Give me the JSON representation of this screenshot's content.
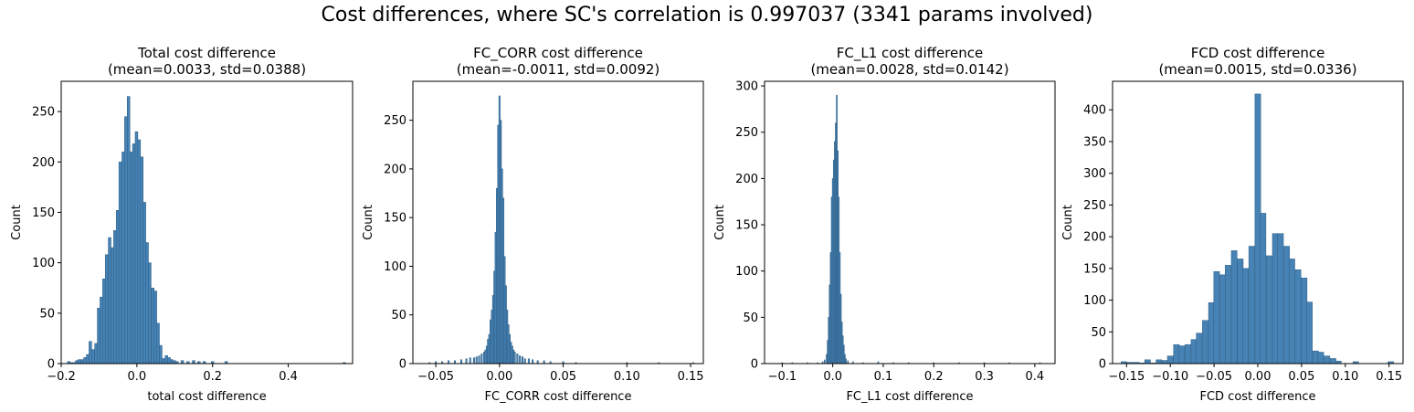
{
  "figure": {
    "suptitle": "Cost differences, where SC's correlation is 0.997037 (3341 params involved)"
  },
  "colors": {
    "bar_fill": "#4682b4",
    "bar_edge": "#2f5f86",
    "axis": "#000000"
  },
  "chart_data": [
    {
      "type": "bar",
      "title_line1": "Total cost difference",
      "title_line2": "(mean=0.0033, std=0.0388)",
      "xlabel": "total cost difference",
      "ylabel": "Count",
      "xlim": [
        -0.2,
        0.57
      ],
      "ylim": [
        0,
        280
      ],
      "xticks": [
        -0.2,
        0.0,
        0.2,
        0.4
      ],
      "xtick_labels": [
        "−0.2",
        "0.0",
        "0.2",
        "0.4"
      ],
      "yticks": [
        0,
        50,
        100,
        150,
        200,
        250
      ],
      "bin_width": 0.0072,
      "series": [
        {
          "x": [
            -0.18,
            -0.173,
            -0.166,
            -0.159,
            -0.152,
            -0.144,
            -0.137,
            -0.13,
            -0.123,
            -0.116,
            -0.108,
            -0.101,
            -0.094,
            -0.087,
            -0.08,
            -0.072,
            -0.065,
            -0.058,
            -0.051,
            -0.044,
            -0.036,
            -0.029,
            -0.022,
            -0.015,
            -0.008,
            -0.001,
            0.006,
            0.013,
            0.02,
            0.027,
            0.034,
            0.042,
            0.049,
            0.056,
            0.063,
            0.07,
            0.078,
            0.085,
            0.092,
            0.099,
            0.106,
            0.12,
            0.135,
            0.15,
            0.164,
            0.178,
            0.2,
            0.236,
            0.548
          ],
          "values": [
            2,
            1,
            1,
            3,
            4,
            4,
            6,
            9,
            22,
            14,
            20,
            55,
            66,
            84,
            108,
            125,
            115,
            132,
            152,
            200,
            210,
            245,
            265,
            210,
            218,
            230,
            222,
            205,
            160,
            120,
            100,
            75,
            72,
            40,
            18,
            5,
            8,
            6,
            4,
            3,
            2,
            3,
            2,
            3,
            2,
            2,
            2,
            2,
            1
          ]
        }
      ]
    },
    {
      "type": "bar",
      "title_line1": "FC_CORR cost difference",
      "title_line2": "(mean=-0.0011, std=0.0092)",
      "xlabel": "FC_CORR cost difference",
      "ylabel": "Count",
      "xlim": [
        -0.068,
        0.16
      ],
      "ylim": [
        0,
        290
      ],
      "xticks": [
        -0.05,
        0.0,
        0.05,
        0.1,
        0.15
      ],
      "xtick_labels": [
        "−0.05",
        "0.00",
        "0.05",
        "0.10",
        "0.15"
      ],
      "yticks": [
        0,
        50,
        100,
        150,
        200,
        250
      ],
      "bin_width": 0.0011,
      "series": [
        {
          "x": [
            -0.055,
            -0.05,
            -0.045,
            -0.04,
            -0.035,
            -0.03,
            -0.026,
            -0.023,
            -0.02,
            -0.018,
            -0.016,
            -0.014,
            -0.012,
            -0.011,
            -0.01,
            -0.009,
            -0.008,
            -0.007,
            -0.006,
            -0.005,
            -0.004,
            -0.003,
            -0.002,
            -0.001,
            0.0,
            0.001,
            0.002,
            0.003,
            0.004,
            0.005,
            0.006,
            0.007,
            0.008,
            0.009,
            0.01,
            0.011,
            0.012,
            0.014,
            0.016,
            0.018,
            0.02,
            0.023,
            0.026,
            0.03,
            0.035,
            0.04,
            0.05,
            0.06,
            0.1,
            0.125,
            0.152
          ],
          "values": [
            1,
            2,
            2,
            3,
            3,
            4,
            5,
            6,
            6,
            7,
            8,
            10,
            12,
            14,
            18,
            25,
            30,
            45,
            55,
            70,
            95,
            135,
            180,
            245,
            275,
            250,
            200,
            170,
            110,
            80,
            55,
            40,
            30,
            22,
            18,
            14,
            12,
            10,
            8,
            7,
            5,
            5,
            4,
            3,
            3,
            2,
            2,
            1,
            1,
            1,
            1
          ]
        }
      ]
    },
    {
      "type": "bar",
      "title_line1": "FC_L1 cost difference",
      "title_line2": "(mean=0.0028, std=0.0142)",
      "xlabel": "FC_L1 cost difference",
      "ylabel": "Count",
      "xlim": [
        -0.135,
        0.44
      ],
      "ylim": [
        0,
        305
      ],
      "xticks": [
        -0.1,
        0.0,
        0.1,
        0.2,
        0.3,
        0.4
      ],
      "xtick_labels": [
        "−0.1",
        "0.0",
        "0.1",
        "0.2",
        "0.3",
        "0.4"
      ],
      "yticks": [
        0,
        50,
        100,
        150,
        200,
        250,
        300
      ],
      "bin_width": 0.002,
      "series": [
        {
          "x": [
            -0.1,
            -0.08,
            -0.05,
            -0.03,
            -0.02,
            -0.016,
            -0.012,
            -0.01,
            -0.008,
            -0.006,
            -0.004,
            -0.002,
            0.0,
            0.002,
            0.004,
            0.006,
            0.008,
            0.01,
            0.012,
            0.014,
            0.016,
            0.018,
            0.02,
            0.022,
            0.024,
            0.026,
            0.03,
            0.04,
            0.06,
            0.09,
            0.12,
            0.15,
            0.2,
            0.25,
            0.3,
            0.35,
            0.41
          ],
          "values": [
            1,
            1,
            1,
            1,
            2,
            4,
            10,
            25,
            50,
            85,
            120,
            180,
            200,
            220,
            240,
            260,
            290,
            230,
            180,
            120,
            75,
            45,
            30,
            20,
            10,
            5,
            3,
            2,
            1,
            2,
            1,
            1,
            1,
            1,
            1,
            1,
            1
          ]
        }
      ]
    },
    {
      "type": "bar",
      "title_line1": "FCD cost difference",
      "title_line2": "(mean=0.0015, std=0.0336)",
      "xlabel": "FCD cost difference",
      "ylabel": "Count",
      "xlim": [
        -0.166,
        0.166
      ],
      "ylim": [
        0,
        445
      ],
      "xticks": [
        -0.15,
        -0.1,
        -0.05,
        0.0,
        0.05,
        0.1,
        0.15
      ],
      "xtick_labels": [
        "−0.15",
        "−0.10",
        "−0.05",
        "0.00",
        "0.05",
        "0.10",
        "0.15"
      ],
      "yticks": [
        0,
        50,
        100,
        150,
        200,
        250,
        300,
        350,
        400
      ],
      "bin_width": 0.0066,
      "series": [
        {
          "x": [
            -0.153,
            -0.146,
            -0.139,
            -0.133,
            -0.126,
            -0.12,
            -0.113,
            -0.106,
            -0.1,
            -0.093,
            -0.087,
            -0.08,
            -0.073,
            -0.067,
            -0.06,
            -0.053,
            -0.047,
            -0.04,
            -0.034,
            -0.027,
            -0.02,
            -0.014,
            -0.007,
            0.0,
            0.006,
            0.013,
            0.02,
            0.026,
            0.033,
            0.039,
            0.046,
            0.053,
            0.059,
            0.066,
            0.072,
            0.079,
            0.086,
            0.092,
            0.112,
            0.152
          ],
          "values": [
            3,
            2,
            2,
            1,
            6,
            1,
            6,
            5,
            12,
            30,
            28,
            30,
            38,
            48,
            68,
            96,
            145,
            140,
            155,
            178,
            165,
            150,
            185,
            425,
            237,
            170,
            205,
            205,
            185,
            165,
            148,
            135,
            97,
            20,
            18,
            12,
            8,
            4,
            3,
            3
          ]
        }
      ]
    }
  ]
}
